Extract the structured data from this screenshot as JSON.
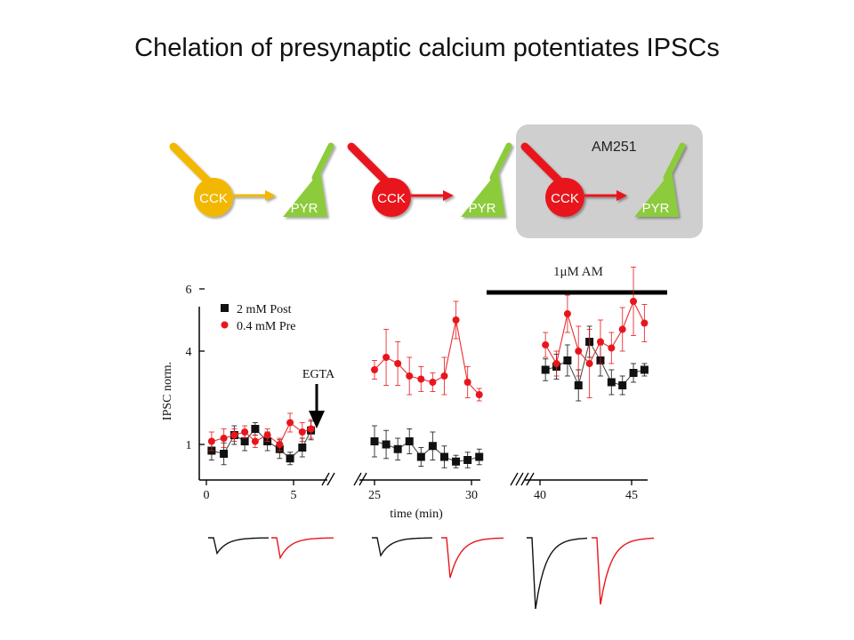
{
  "title": "Chelation of presynaptic calcium potentiates IPSCs",
  "schematic": {
    "cell_label_pre": "CCK",
    "cell_label_post": "PYR",
    "drug_label": "AM251",
    "colors": {
      "yellow": "#F2B705",
      "red": "#E8161C",
      "green": "#8CCB3A",
      "box": "#CFCFCF"
    },
    "panels": [
      {
        "pre_color": "yellow",
        "boxed": false
      },
      {
        "pre_color": "red",
        "boxed": false
      },
      {
        "pre_color": "red",
        "boxed": true
      }
    ]
  },
  "drug_bar_label": "1μM AM",
  "egta_label": "EGTA",
  "chart_data": {
    "type": "scatter",
    "ylabel": "IPSC norm.",
    "xlabel": "time (min)",
    "yticks": [
      1,
      4,
      6
    ],
    "xticks": [
      0,
      5,
      25,
      30,
      40,
      45
    ],
    "ylim": [
      0,
      6.5
    ],
    "broken_axis_segments": [
      [
        0,
        6.6
      ],
      [
        24.6,
        30.4
      ],
      [
        39.6,
        45.8
      ]
    ],
    "legend": {
      "position": "top-left"
    },
    "series": [
      {
        "name": "2 mM Post",
        "color": "#111111",
        "marker": "square",
        "points": [
          {
            "x": 0.3,
            "y": 0.8,
            "err": 0.3
          },
          {
            "x": 1.0,
            "y": 0.7,
            "err": 0.35
          },
          {
            "x": 1.6,
            "y": 1.3,
            "err": 0.3
          },
          {
            "x": 2.2,
            "y": 1.1,
            "err": 0.3
          },
          {
            "x": 2.8,
            "y": 1.5,
            "err": 0.2
          },
          {
            "x": 3.5,
            "y": 1.1,
            "err": 0.3
          },
          {
            "x": 4.2,
            "y": 0.85,
            "err": 0.3
          },
          {
            "x": 4.8,
            "y": 0.55,
            "err": 0.2
          },
          {
            "x": 5.5,
            "y": 0.9,
            "err": 0.3
          },
          {
            "x": 6.0,
            "y": 1.45,
            "err": 0.3
          },
          {
            "x": 25.0,
            "y": 1.1,
            "err": 0.5
          },
          {
            "x": 25.6,
            "y": 1.0,
            "err": 0.45
          },
          {
            "x": 26.2,
            "y": 0.85,
            "err": 0.35
          },
          {
            "x": 26.8,
            "y": 1.1,
            "err": 0.4
          },
          {
            "x": 27.4,
            "y": 0.6,
            "err": 0.3
          },
          {
            "x": 28.0,
            "y": 0.95,
            "err": 0.45
          },
          {
            "x": 28.6,
            "y": 0.6,
            "err": 0.35
          },
          {
            "x": 29.2,
            "y": 0.45,
            "err": 0.2
          },
          {
            "x": 29.8,
            "y": 0.5,
            "err": 0.25
          },
          {
            "x": 30.4,
            "y": 0.6,
            "err": 0.25
          },
          {
            "x": 40.3,
            "y": 3.4,
            "err": 0.35
          },
          {
            "x": 40.9,
            "y": 3.5,
            "err": 0.4
          },
          {
            "x": 41.5,
            "y": 3.7,
            "err": 0.5
          },
          {
            "x": 42.1,
            "y": 2.9,
            "err": 0.5
          },
          {
            "x": 42.7,
            "y": 4.3,
            "err": 0.5
          },
          {
            "x": 43.3,
            "y": 3.7,
            "err": 0.5
          },
          {
            "x": 43.9,
            "y": 3.0,
            "err": 0.4
          },
          {
            "x": 44.5,
            "y": 2.9,
            "err": 0.3
          },
          {
            "x": 45.1,
            "y": 3.3,
            "err": 0.3
          },
          {
            "x": 45.7,
            "y": 3.4,
            "err": 0.2
          }
        ]
      },
      {
        "name": "0.4 mM Pre",
        "color": "#E8161C",
        "marker": "circle",
        "points": [
          {
            "x": 0.3,
            "y": 1.1,
            "err": 0.3
          },
          {
            "x": 1.0,
            "y": 1.2,
            "err": 0.3
          },
          {
            "x": 1.6,
            "y": 1.3,
            "err": 0.2
          },
          {
            "x": 2.2,
            "y": 1.4,
            "err": 0.2
          },
          {
            "x": 2.8,
            "y": 1.1,
            "err": 0.2
          },
          {
            "x": 3.5,
            "y": 1.3,
            "err": 0.2
          },
          {
            "x": 4.2,
            "y": 1.0,
            "err": 0.2
          },
          {
            "x": 4.8,
            "y": 1.7,
            "err": 0.3
          },
          {
            "x": 5.5,
            "y": 1.4,
            "err": 0.3
          },
          {
            "x": 6.0,
            "y": 1.5,
            "err": 0.3
          },
          {
            "x": 25.0,
            "y": 3.4,
            "err": 0.3
          },
          {
            "x": 25.6,
            "y": 3.8,
            "err": 0.9
          },
          {
            "x": 26.2,
            "y": 3.6,
            "err": 0.7
          },
          {
            "x": 26.8,
            "y": 3.2,
            "err": 0.6
          },
          {
            "x": 27.4,
            "y": 3.1,
            "err": 0.4
          },
          {
            "x": 28.0,
            "y": 3.0,
            "err": 0.3
          },
          {
            "x": 28.6,
            "y": 3.2,
            "err": 0.6
          },
          {
            "x": 29.2,
            "y": 5.0,
            "err": 0.6
          },
          {
            "x": 29.8,
            "y": 3.0,
            "err": 0.5
          },
          {
            "x": 30.4,
            "y": 2.6,
            "err": 0.2
          },
          {
            "x": 40.3,
            "y": 4.2,
            "err": 0.4
          },
          {
            "x": 40.9,
            "y": 3.6,
            "err": 0.4
          },
          {
            "x": 41.5,
            "y": 5.2,
            "err": 0.6
          },
          {
            "x": 42.1,
            "y": 4.0,
            "err": 0.8
          },
          {
            "x": 42.7,
            "y": 3.6,
            "err": 1.1
          },
          {
            "x": 43.3,
            "y": 4.3,
            "err": 0.7
          },
          {
            "x": 43.9,
            "y": 4.1,
            "err": 0.5
          },
          {
            "x": 44.5,
            "y": 4.7,
            "err": 0.7
          },
          {
            "x": 45.1,
            "y": 5.6,
            "err": 1.1
          },
          {
            "x": 45.7,
            "y": 4.9,
            "err": 0.6
          }
        ]
      }
    ]
  },
  "traces": {
    "colors": {
      "post": "#111111",
      "pre": "#E8161C"
    },
    "groups": [
      {
        "amp_post": 0.35,
        "amp_pre": 0.45
      },
      {
        "amp_post": 0.4,
        "amp_pre": 0.9
      },
      {
        "amp_post": 1.6,
        "amp_pre": 1.5
      }
    ]
  }
}
